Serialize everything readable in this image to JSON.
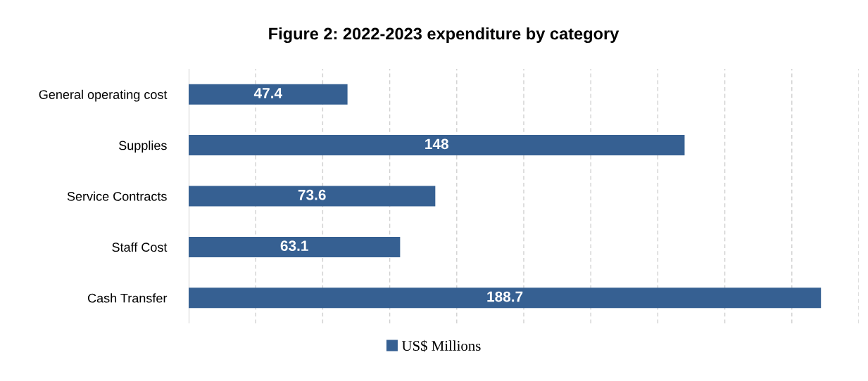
{
  "chart_data": {
    "type": "bar",
    "orientation": "horizontal",
    "title": "Figure 2: 2022-2023 expenditure by category",
    "categories": [
      "General operating cost",
      "Supplies",
      "Service Contracts",
      "Staff Cost",
      "Cash Transfer"
    ],
    "series": [
      {
        "name": "US$ Millions",
        "color": "#366092",
        "values": [
          47.4,
          148,
          73.6,
          63.1,
          188.7
        ]
      }
    ],
    "data_labels": true,
    "xlim": [
      0,
      200
    ],
    "xticks": [
      {
        "value": 0,
        "label": null
      },
      {
        "value": 20,
        "label": null
      },
      {
        "value": 40,
        "label": null
      },
      {
        "value": 60,
        "label": null
      },
      {
        "value": 80,
        "label": null
      },
      {
        "value": 100,
        "label": null
      },
      {
        "value": 120,
        "label": null
      },
      {
        "value": 140,
        "label": null
      },
      {
        "value": 160,
        "label": null
      },
      {
        "value": 180,
        "label": null
      },
      {
        "value": 200,
        "label": null
      }
    ],
    "tick_labels": "y",
    "grid": "x",
    "legend": "bottom"
  }
}
